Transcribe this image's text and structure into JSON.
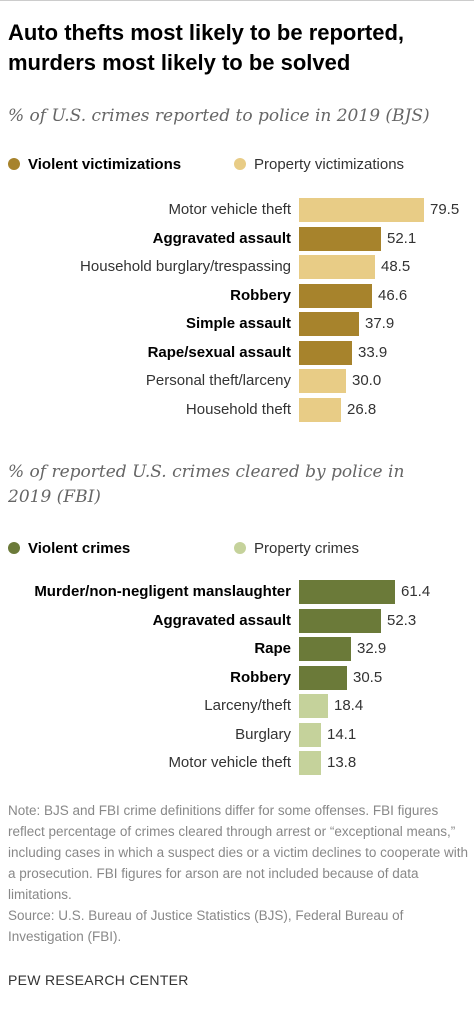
{
  "title": "Auto thefts most likely to be reported, murders most likely to be solved",
  "note": "Note: BJS and FBI crime definitions differ for some offenses. FBI figures reflect percentage of crimes cleared through arrest or “exceptional means,” including cases in which a suspect dies or a victim declines to cooperate with a prosecution. FBI figures for arson are not included because of data limitations.\nSource: U.S. Bureau of Justice Statistics (BJS), Federal Bureau of Investigation (FBI).",
  "brand": "PEW RESEARCH CENTER",
  "colors": {
    "violent_reported": "#a7832c",
    "property_reported": "#e8cc86",
    "violent_cleared": "#6b7a39",
    "property_cleared": "#c5d29b"
  },
  "chart_data": [
    {
      "type": "bar",
      "orientation": "horizontal",
      "title": "% of U.S. crimes reported to police in 2019 (BJS)",
      "legend": [
        {
          "name": "Violent victimizations",
          "color": "#a7832c"
        },
        {
          "name": "Property victimizations",
          "color": "#e8cc86"
        }
      ],
      "categories": [
        "Motor vehicle theft",
        "Aggravated assault",
        "Household burglary/trespassing",
        "Robbery",
        "Simple assault",
        "Rape/sexual assault",
        "Personal theft/larceny",
        "Household theft"
      ],
      "values": [
        79.5,
        52.1,
        48.5,
        46.6,
        37.9,
        33.9,
        30.0,
        26.8
      ],
      "value_labels": [
        "79.5",
        "52.1",
        "48.5",
        "46.6",
        "37.9",
        "33.9",
        "30.0",
        "26.8"
      ],
      "groups": [
        "Property victimizations",
        "Violent victimizations",
        "Property victimizations",
        "Violent victimizations",
        "Violent victimizations",
        "Violent victimizations",
        "Property victimizations",
        "Property victimizations"
      ]
    },
    {
      "type": "bar",
      "orientation": "horizontal",
      "title": "% of reported U.S. crimes cleared by police in 2019 (FBI)",
      "legend": [
        {
          "name": "Violent crimes",
          "color": "#6b7a39"
        },
        {
          "name": "Property crimes",
          "color": "#c5d29b"
        }
      ],
      "categories": [
        "Murder/non-negligent manslaughter",
        "Aggravated assault",
        "Rape",
        "Robbery",
        "Larceny/theft",
        "Burglary",
        "Motor vehicle theft"
      ],
      "values": [
        61.4,
        52.3,
        32.9,
        30.5,
        18.4,
        14.1,
        13.8
      ],
      "value_labels": [
        "61.4",
        "52.3",
        "32.9",
        "30.5",
        "18.4",
        "14.1",
        "13.8"
      ],
      "groups": [
        "Violent crimes",
        "Violent crimes",
        "Violent crimes",
        "Violent crimes",
        "Property crimes",
        "Property crimes",
        "Property crimes"
      ]
    }
  ]
}
